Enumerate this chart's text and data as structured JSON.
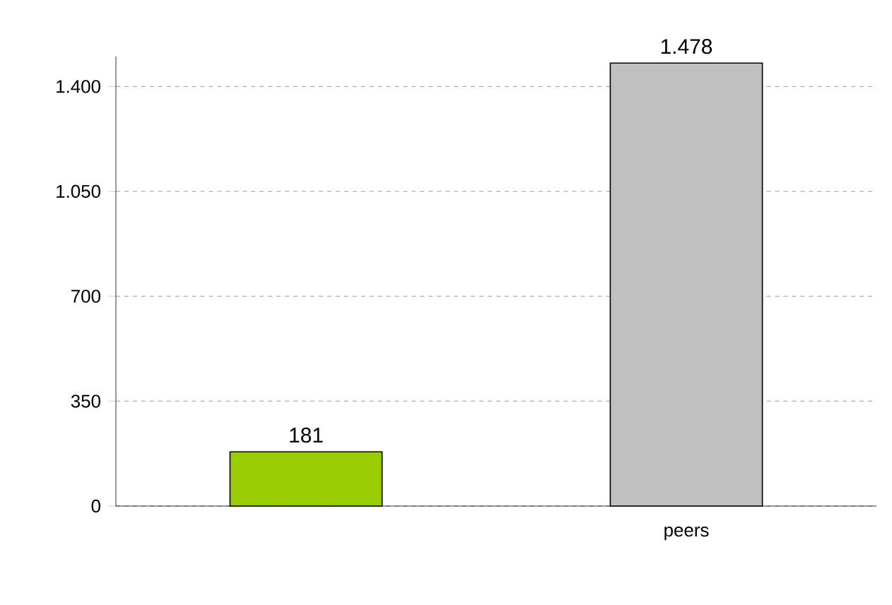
{
  "chart_data": {
    "type": "bar",
    "categories": [
      null,
      "peers"
    ],
    "values": [
      181,
      1478
    ],
    "colors": [
      "#99cc00",
      "#c0c0c0"
    ],
    "value_labels": [
      "181",
      "1.478"
    ],
    "ylim": [
      0,
      1500
    ],
    "yticks": [
      0,
      350,
      700,
      {
        "value": 1050,
        "label": "1.050"
      },
      {
        "value": 1400,
        "label": "1.400"
      }
    ],
    "grid": "y"
  }
}
